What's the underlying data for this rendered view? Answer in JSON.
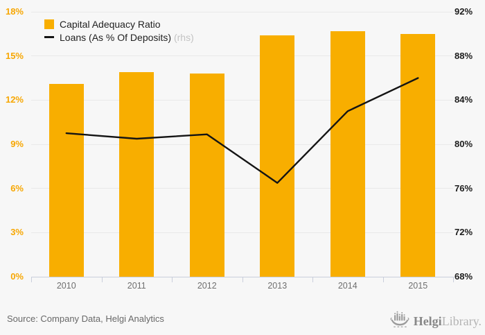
{
  "chart_data": {
    "type": "bar+line combo",
    "categories": [
      "2010",
      "2011",
      "2012",
      "2013",
      "2014",
      "2015"
    ],
    "series": [
      {
        "name": "Capital Adequacy Ratio",
        "type": "bar",
        "axis": "left",
        "color": "#f8ae00",
        "values": [
          13.1,
          13.9,
          13.8,
          16.4,
          16.7,
          16.5
        ]
      },
      {
        "name": "Loans (As % Of Deposits)",
        "type": "line",
        "axis": "right",
        "color": "#141414",
        "values": [
          81.0,
          80.5,
          80.9,
          76.5,
          83.0,
          86.0
        ]
      }
    ],
    "left_axis": {
      "min": 0,
      "max": 18,
      "step": 3,
      "ticks": [
        0,
        3,
        6,
        9,
        12,
        15,
        18
      ],
      "labels": [
        "0%",
        "3%",
        "6%",
        "9%",
        "12%",
        "15%",
        "18%"
      ],
      "label_color": "#f7a703"
    },
    "right_axis": {
      "min": 68,
      "max": 92,
      "step": 4,
      "ticks": [
        68,
        72,
        76,
        80,
        84,
        88,
        92
      ],
      "labels": [
        "68%",
        "72%",
        "76%",
        "80%",
        "84%",
        "88%",
        "92%"
      ],
      "label_color": "#1c1c1c"
    },
    "grid": true,
    "legend_position": "top-left",
    "title": ""
  },
  "legend": {
    "bar_label": "Capital Adequacy Ratio",
    "line_label": "Loans (As % Of Deposits)",
    "line_suffix": "(rhs)"
  },
  "footer": {
    "source": "Source: Company Data, Helgi Analytics"
  },
  "logo": {
    "name_primary": "Helgi",
    "name_secondary": "Library."
  },
  "colors": {
    "background": "#f7f7f7",
    "gridline": "#e9e9e9",
    "axis": "#c9cedb",
    "bar": "#f8ae00",
    "line": "#141414"
  }
}
